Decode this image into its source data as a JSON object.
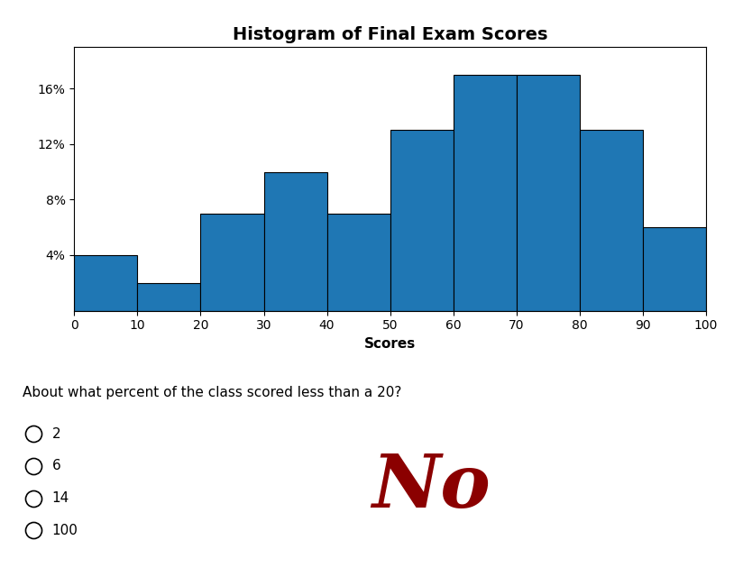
{
  "chart_data": {
    "type": "histogram",
    "title": "Histogram of Final Exam Scores",
    "x_label": "Scores",
    "bins": [
      0,
      10,
      20,
      30,
      40,
      50,
      60,
      70,
      80,
      90,
      100
    ],
    "values": [
      4,
      2,
      7,
      10,
      7,
      13,
      17,
      17,
      13,
      6
    ],
    "xlim": [
      0,
      100
    ],
    "xticks": [
      0,
      10,
      20,
      30,
      40,
      50,
      60,
      70,
      80,
      90,
      100
    ],
    "ylim": [
      0,
      19
    ],
    "yticks": [
      {
        "value": 4,
        "label": "4%"
      },
      {
        "value": 8,
        "label": "8%"
      },
      {
        "value": 12,
        "label": "12%"
      },
      {
        "value": 16,
        "label": "16%"
      }
    ],
    "grid": false,
    "question": "About what percent of the class scored less than a 20?",
    "choices": [
      "2",
      "6",
      "14",
      "100"
    ],
    "annotations": [
      {
        "text": "No",
        "color": "#8b0000"
      }
    ]
  }
}
